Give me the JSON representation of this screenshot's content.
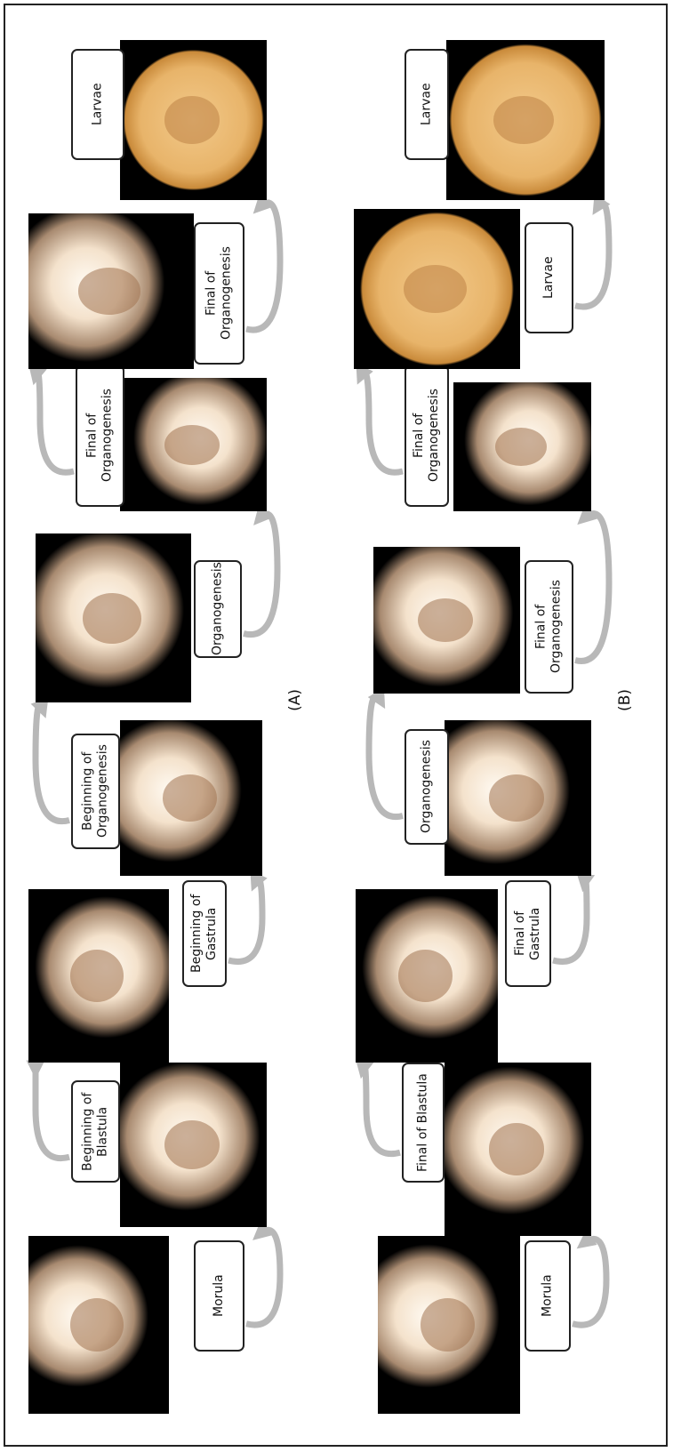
{
  "panels": [
    {
      "label": "(A)",
      "stages": [
        "Morula",
        "Beginning of Blastula",
        "Beginning of Gastrula",
        "Beginning of Organogenesis",
        "Organogenesis",
        "Final of Organogenesis",
        "Final of Organogenesis",
        "Larvae"
      ]
    },
    {
      "label": "(B)",
      "stages": [
        "Morula",
        "Final of Blastula",
        "Final of Gastrula",
        "Organogenesis",
        "Final of Organogenesis",
        "Final of Organogenesis",
        "Larvae",
        "Larvae"
      ]
    }
  ]
}
